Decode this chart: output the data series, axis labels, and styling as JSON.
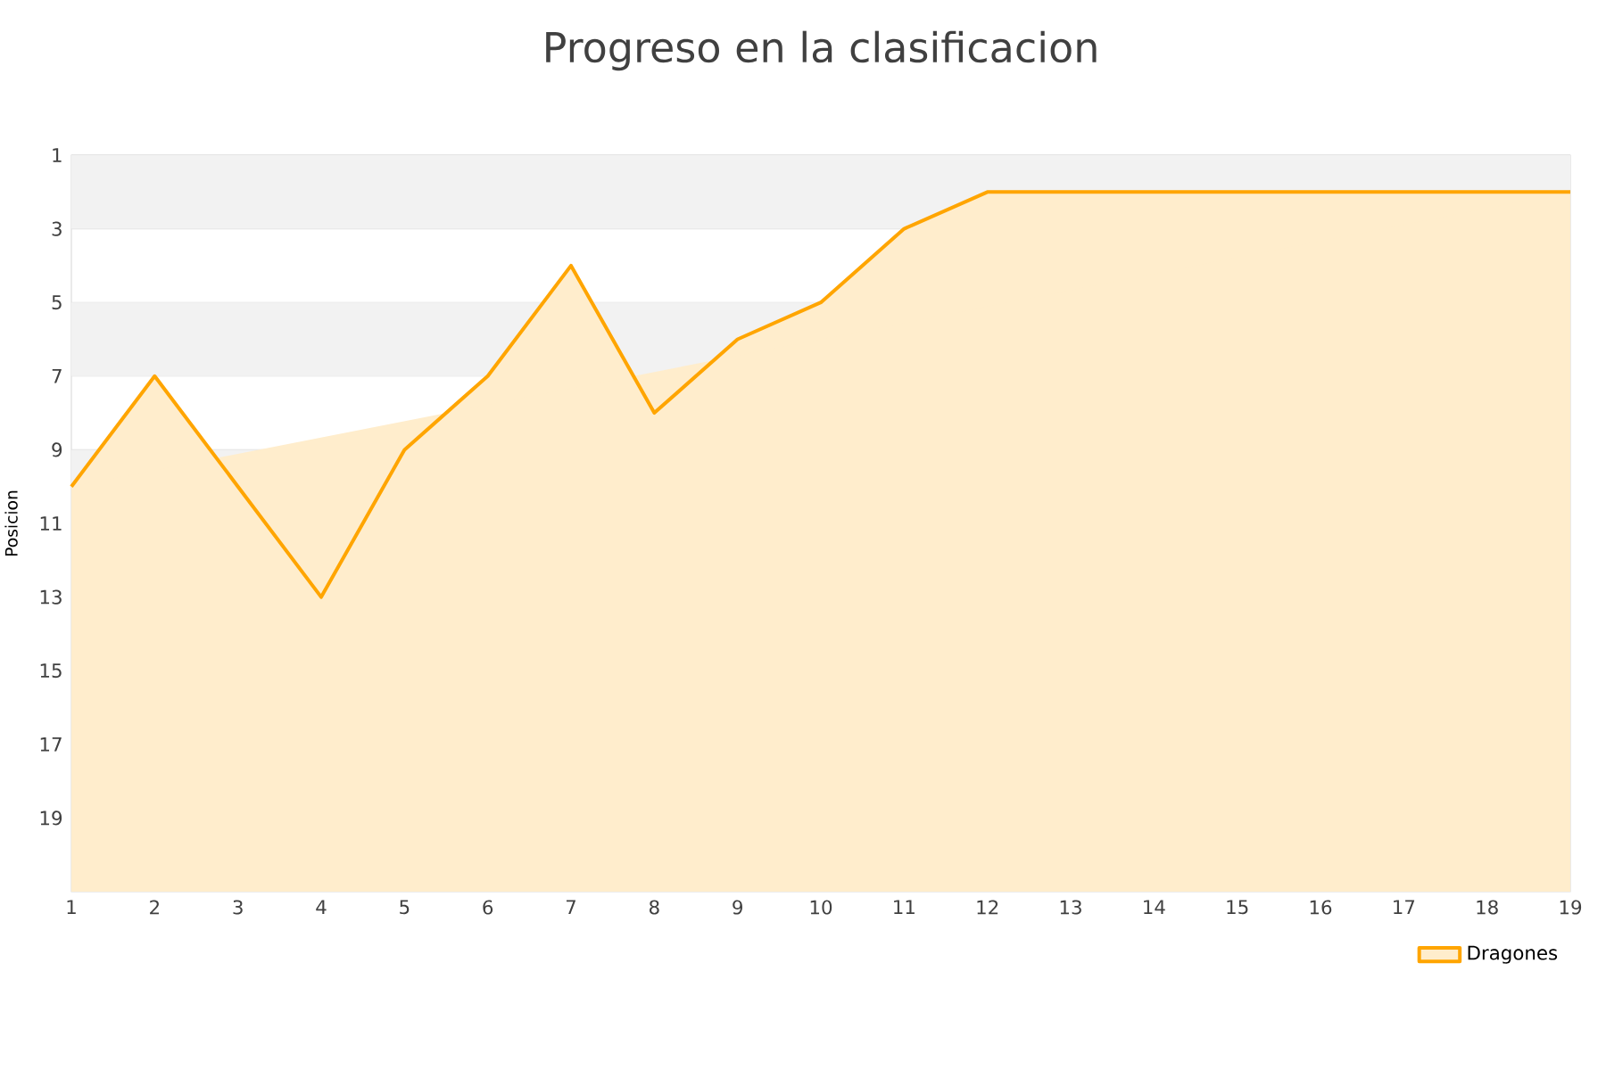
{
  "chart_data": {
    "type": "area",
    "title": "Progreso en la clasificacion",
    "ylabel": "Posicion",
    "x": [
      1,
      2,
      3,
      4,
      5,
      6,
      7,
      8,
      9,
      10,
      11,
      12,
      13,
      14,
      15,
      16,
      17,
      18,
      19
    ],
    "series": [
      {
        "name": "Dragones",
        "color": "#ffa500",
        "values": [
          10,
          7,
          10,
          13,
          9,
          7,
          4,
          8,
          6,
          5,
          3,
          2,
          2,
          2,
          2,
          2,
          2,
          2,
          2
        ]
      }
    ],
    "xlim": [
      1,
      19
    ],
    "xticks": [
      1,
      2,
      3,
      4,
      5,
      6,
      7,
      8,
      9,
      10,
      11,
      12,
      13,
      14,
      15,
      16,
      17,
      18,
      19
    ],
    "ylim": [
      21,
      1
    ],
    "yticks": [
      1,
      3,
      5,
      7,
      9,
      11,
      13,
      15,
      17,
      19
    ],
    "grid": "y",
    "legend": "bottom right"
  }
}
